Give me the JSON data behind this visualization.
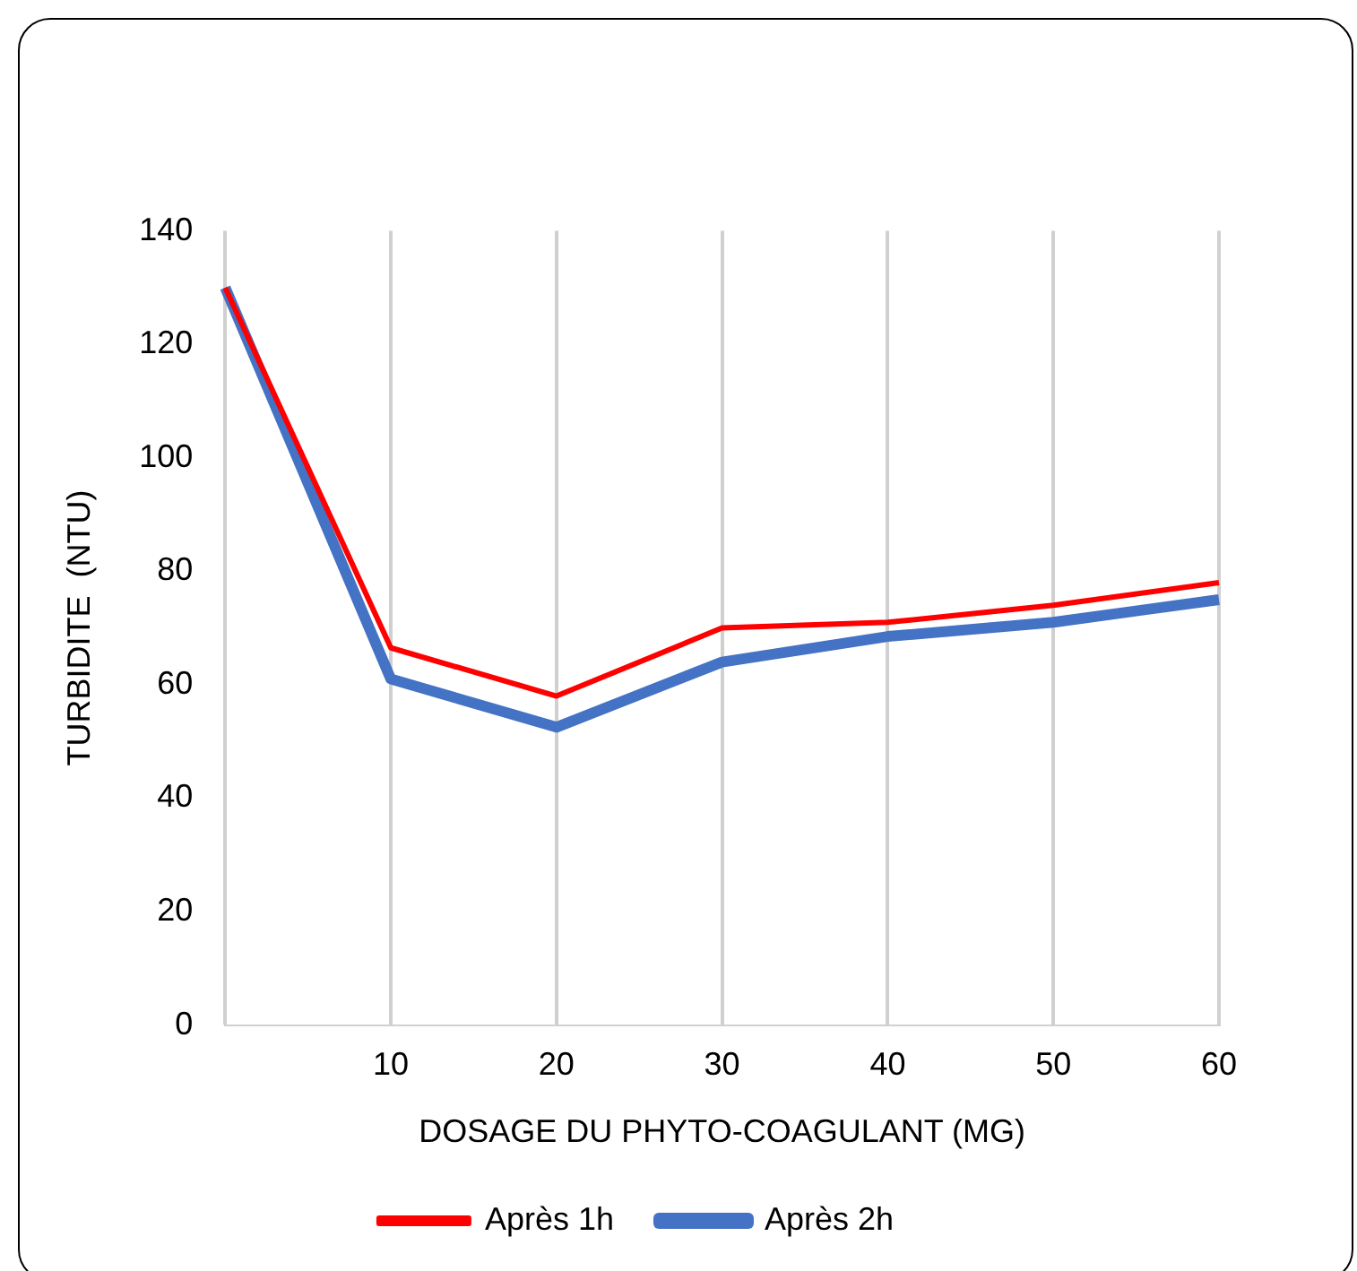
{
  "chart_data": {
    "type": "line",
    "xlabel": "DOSAGE DU PHYTO-COAGULANT (MG)",
    "ylabel": "TURBIDITE  (NTU)",
    "categories": [
      null,
      "10",
      "20",
      "30",
      "40",
      "50",
      "60"
    ],
    "series": [
      {
        "name": "Après 1h",
        "color": "#ff0000",
        "values": [
          130,
          66.5,
          58,
          70,
          71,
          74,
          78
        ]
      },
      {
        "name": "Après 2h",
        "color": "#4472c4",
        "values": [
          130,
          61,
          52.5,
          64,
          68.5,
          71,
          75
        ]
      }
    ],
    "ylim": [
      0,
      140
    ],
    "yticks": [
      0,
      20,
      40,
      60,
      80,
      100,
      120,
      140
    ],
    "grid": "x",
    "legend": "bottom",
    "marker": "none",
    "line_style": "solid"
  }
}
